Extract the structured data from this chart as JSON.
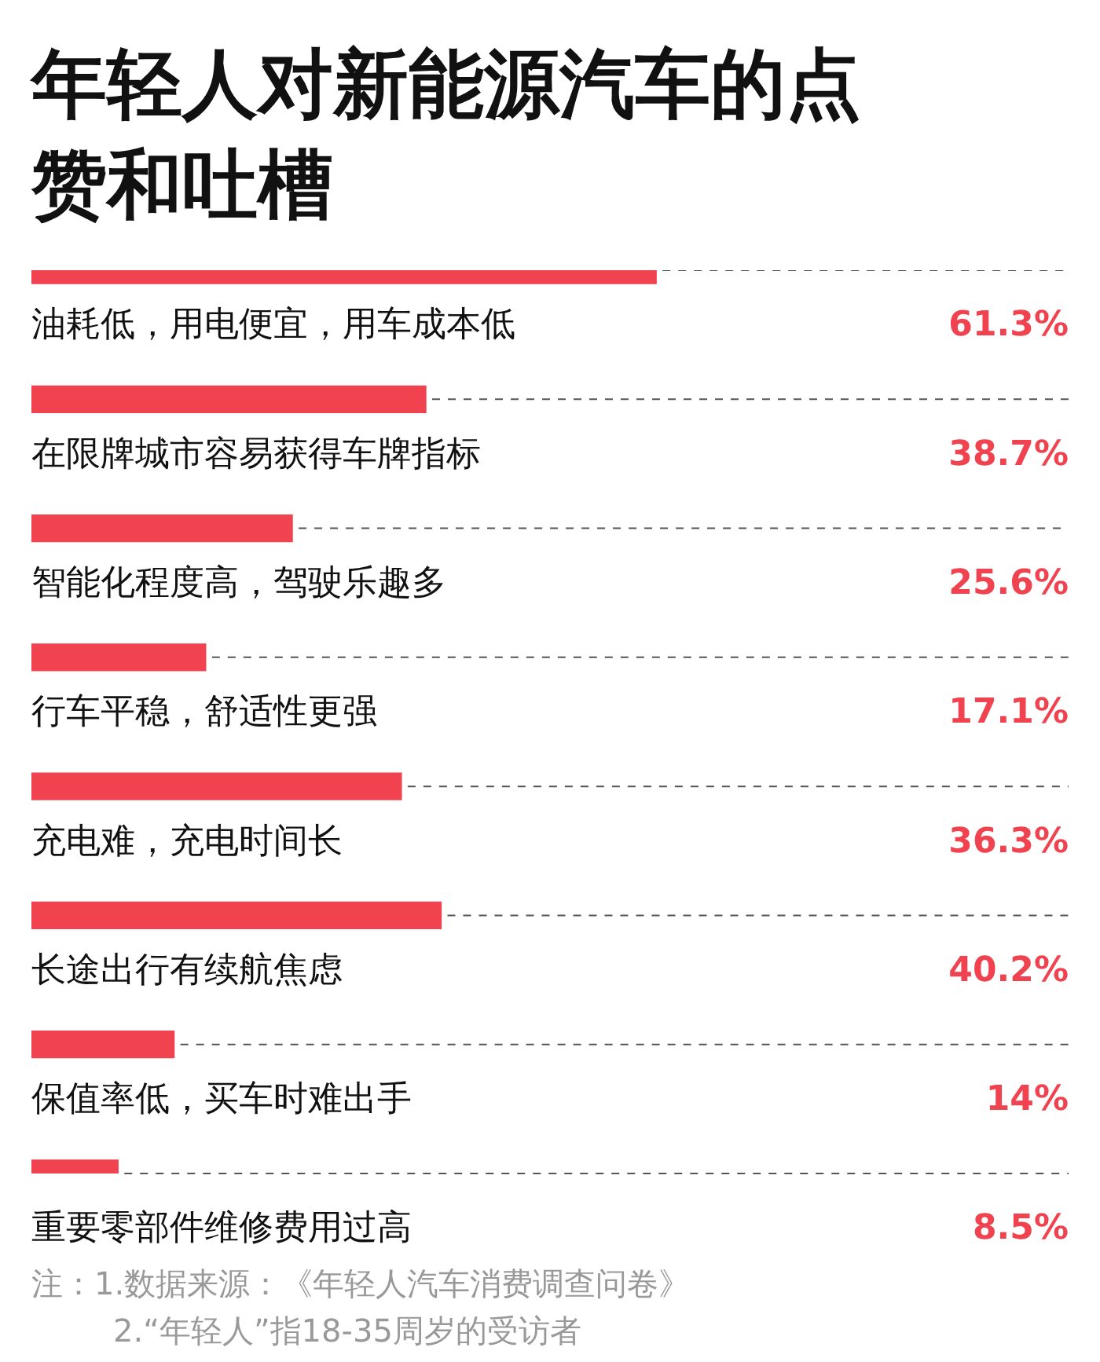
{
  "chart_data": {
    "type": "bar",
    "orientation": "horizontal",
    "title": "年轻人对新能源汽车的点赞和吐槽",
    "categories": [
      "油耗低，用电便宜，用车成本低",
      "在限牌城市容易获得车牌指标",
      "智能化程度高，驾驶乐趣多",
      "行车平稳，舒适性更强",
      "充电难，充电时间长",
      "长途出行有续航焦虑",
      "保值率低，买车时难出手",
      "重要零部件维修费用过高"
    ],
    "values": [
      61.3,
      38.7,
      25.6,
      17.1,
      36.3,
      40.2,
      14,
      8.5
    ],
    "value_labels": [
      "61.3%",
      "38.7%",
      "25.6%",
      "17.1%",
      "36.3%",
      "40.2%",
      "14%",
      "8.5%"
    ],
    "color": "#f0434f",
    "annotations": [
      "注：1.数据来源：《年轻人汽车消费调查问卷》",
      "2.“年轻人”指18-35周岁的受访者"
    ]
  }
}
